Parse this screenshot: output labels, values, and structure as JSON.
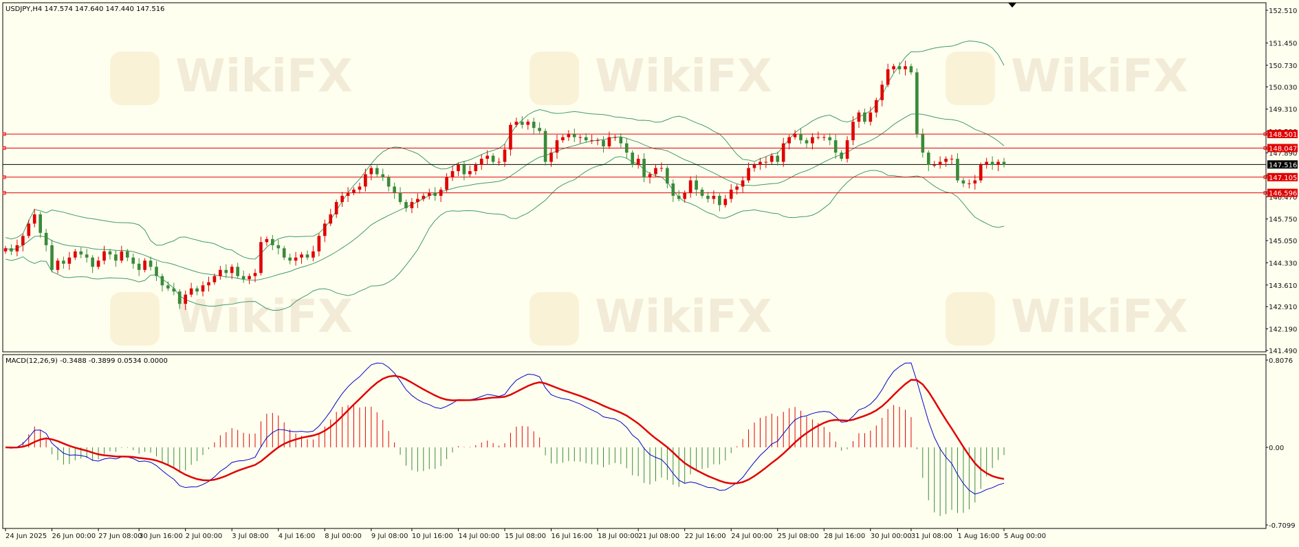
{
  "header": {
    "symbol_info": "USDJPY,H4  147.574 147.640 147.440 147.516",
    "macd_info": "MACD(12,26,9) -0.3488 -0.3899 0.0534 0.0000"
  },
  "watermark": {
    "text": "WikiFX"
  },
  "colors": {
    "background": "#fffff0",
    "bull": "#e00000",
    "bear": "#3a8a3a",
    "band": "#3f9a6a",
    "macd_main": "#0000c8",
    "macd_signal": "#e00000",
    "level": "#e00000",
    "price_line": "#000000"
  },
  "chart_data": {
    "type": "candlestick",
    "price_axis": {
      "ylim": [
        141.49,
        152.51
      ],
      "ticks": [
        "152.510",
        "151.450",
        "150.730",
        "150.030",
        "149.310",
        "148.590",
        "147.890",
        "147.170",
        "146.470",
        "145.750",
        "145.050",
        "144.330",
        "143.610",
        "142.910",
        "142.190",
        "141.490"
      ]
    },
    "x_ticks": [
      "24 Jun 2025",
      "26 Jun 00:00",
      "27 Jun 08:00",
      "30 Jun 16:00",
      "2 Jul 00:00",
      "3 Jul 08:00",
      "4 Jul 16:00",
      "8 Jul 00:00",
      "9 Jul 08:00",
      "10 Jul 16:00",
      "14 Jul 00:00",
      "15 Jul 08:00",
      "16 Jul 16:00",
      "18 Jul 00:00",
      "21 Jul 08:00",
      "22 Jul 16:00",
      "24 Jul 00:00",
      "25 Jul 08:00",
      "28 Jul 16:00",
      "30 Jul 00:00",
      "31 Jul 08:00",
      "1 Aug 16:00",
      "5 Aug 00:00"
    ],
    "levels": [
      {
        "value": 148.501,
        "label": "148.501"
      },
      {
        "value": 148.047,
        "label": "148.047"
      },
      {
        "value": 147.105,
        "label": "147.105"
      },
      {
        "value": 146.596,
        "label": "146.596"
      }
    ],
    "current_price": {
      "value": 147.516,
      "label": "147.516"
    },
    "candle_closes": [
      144.8,
      144.7,
      144.9,
      145.2,
      145.6,
      145.9,
      145.3,
      144.9,
      144.1,
      144.4,
      144.3,
      144.5,
      144.7,
      144.6,
      144.5,
      144.2,
      144.4,
      144.7,
      144.6,
      144.4,
      144.7,
      144.5,
      144.3,
      144.1,
      144.4,
      144.2,
      143.9,
      143.6,
      143.5,
      143.4,
      143.0,
      143.3,
      143.5,
      143.4,
      143.6,
      143.7,
      143.9,
      144.1,
      144.0,
      144.2,
      143.9,
      143.8,
      143.9,
      144.0,
      145.0,
      145.1,
      144.9,
      144.8,
      144.5,
      144.4,
      144.5,
      144.6,
      144.5,
      144.7,
      145.2,
      145.6,
      145.9,
      146.3,
      146.5,
      146.6,
      146.7,
      146.8,
      147.2,
      147.4,
      147.2,
      147.1,
      146.8,
      146.6,
      146.3,
      146.1,
      146.3,
      146.4,
      146.5,
      146.6,
      146.5,
      146.7,
      147.1,
      147.3,
      147.5,
      147.2,
      147.3,
      147.5,
      147.7,
      147.8,
      147.6,
      147.6,
      148.0,
      148.8,
      148.9,
      148.8,
      148.9,
      148.7,
      148.6,
      147.6,
      147.9,
      148.3,
      148.4,
      148.5,
      148.4,
      148.4,
      148.3,
      148.3,
      148.3,
      148.1,
      148.4,
      148.4,
      148.2,
      147.9,
      147.5,
      147.7,
      147.1,
      147.2,
      147.4,
      147.4,
      146.9,
      146.5,
      146.4,
      146.6,
      147.0,
      146.7,
      146.5,
      146.4,
      146.5,
      146.2,
      146.4,
      146.7,
      146.8,
      147.0,
      147.4,
      147.5,
      147.6,
      147.6,
      147.8,
      147.6,
      148.2,
      148.4,
      148.5,
      148.3,
      148.2,
      148.4,
      148.4,
      148.4,
      148.3,
      147.9,
      147.7,
      148.3,
      148.9,
      149.2,
      148.9,
      149.2,
      149.6,
      150.1,
      150.6,
      150.7,
      150.6,
      150.7,
      150.5,
      148.5,
      147.9,
      147.5,
      147.5,
      147.6,
      147.7,
      147.7,
      147.0,
      146.9,
      146.9,
      147.0,
      147.5,
      147.6,
      147.5,
      147.6,
      147.5
    ]
  }
}
